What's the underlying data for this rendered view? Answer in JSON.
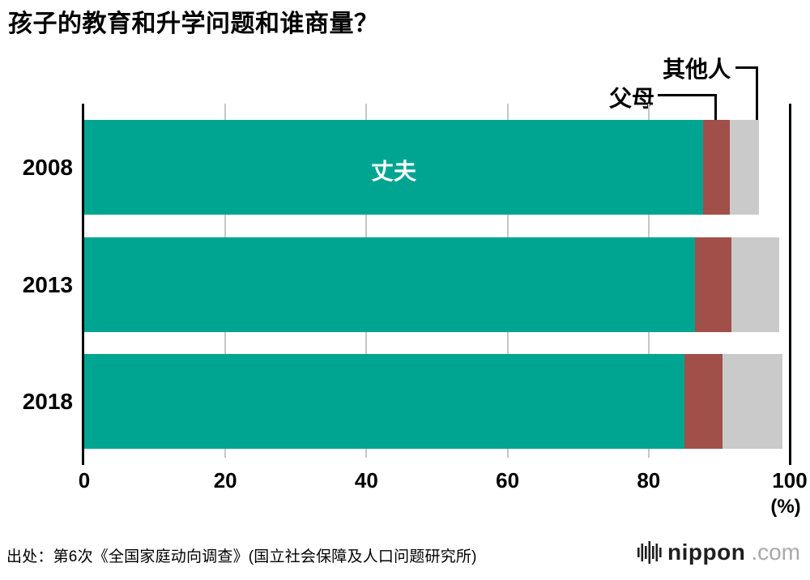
{
  "title": "孩子的教育和升学问题和谁商量？",
  "chart_data": {
    "type": "bar",
    "orientation": "horizontal",
    "stacked": true,
    "categories": [
      "2008",
      "2013",
      "2018"
    ],
    "series": [
      {
        "name": "丈夫",
        "color": "#00a591",
        "values": [
          87.7,
          86.6,
          85.1
        ]
      },
      {
        "name": "父母",
        "color": "#a04f49",
        "values": [
          3.8,
          5.1,
          5.4
        ]
      },
      {
        "name": "其他人",
        "color": "#cacaca",
        "values": [
          4.1,
          6.8,
          8.5
        ]
      }
    ],
    "xlim": [
      0,
      100
    ],
    "x_ticks": [
      0,
      20,
      40,
      60,
      80,
      100
    ],
    "x_unit": "(%)",
    "grid": true,
    "legend": "inline-annotations",
    "title": "孩子的教育和升学问题和谁商量？"
  },
  "source": "出处：第6次《全国家庭动向调查》(国立社会保障及人口问题研究所)",
  "logo": {
    "brand": "nippon",
    "tld": ".com",
    "icon": "soundwave-bars-icon"
  }
}
